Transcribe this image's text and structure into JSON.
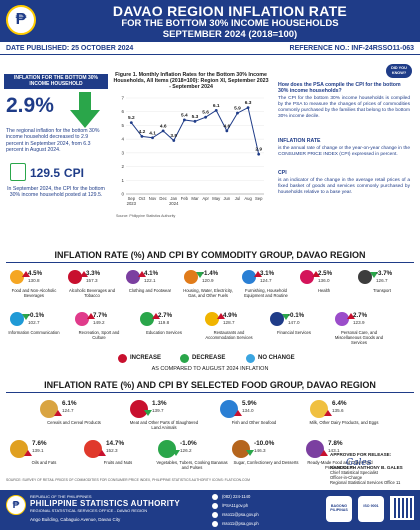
{
  "header": {
    "logo_text": "₱",
    "title": "DAVAO REGION INFLATION RATE",
    "subtitle1": "FOR THE BOTTOM 30% INCOME HOUSEHOLDS",
    "subtitle2": "SEPTEMBER 2024 (2018=100)"
  },
  "meta": {
    "date_published": "DATE PUBLISHED: 25 OCTOBER 2024",
    "reference": "REFERENCE NO.: INF-24RSSO11-063"
  },
  "summary": {
    "panel_title": "INFLATION FOR THE BOTTOM 30% INCOME HOUSEHOLD",
    "rate": "2.9%",
    "rate_text": "The regional inflation for the bottom 30% income household decreased to 2.9 percent in September 2024, from 6.3 percent in August 2024.",
    "cpi_value": "129.5",
    "cpi_label": "CPI",
    "cpi_text": "In September 2024, the CPI for the bottom 30% income household posted at 129.5."
  },
  "chart_data": {
    "type": "line",
    "title": "Figure 1. Monthly Inflation Rates for the Bottom 30% Income Households, All Items (2018=100): Region XI, September 2023 - September 2024",
    "categories": [
      "Sep 2023",
      "Oct",
      "Nov",
      "Dec",
      "Jan 2024",
      "Feb",
      "Mar",
      "Apr",
      "May",
      "Jun",
      "Jul",
      "Aug",
      "Sep"
    ],
    "x_tick_labels": [
      "Sep\n2023",
      "Oct",
      "Nov",
      "Dec",
      "Jan\n2024",
      "Feb",
      "Mar",
      "Apr",
      "May",
      "Jun",
      "Jul",
      "Aug",
      "Sep"
    ],
    "values": [
      5.2,
      4.2,
      4.1,
      4.6,
      3.9,
      5.4,
      5.3,
      5.6,
      6.1,
      4.6,
      5.9,
      6.3,
      2.9
    ],
    "ylim": [
      0,
      7
    ],
    "yticks": [
      0,
      1,
      2,
      3,
      4,
      5,
      6,
      7
    ],
    "source": "Source: Philippine Statistics Authority",
    "line_color": "#1f3c88"
  },
  "info": {
    "badge": "DID YOU KNOW?",
    "question": "How does the PSA compile the CPI for the bottom 30% income households?",
    "answer": "The CPI for the bottom 30% income households is compiled by the PSA to measure the changes of prices of commodities commonly purchased by the families that belong to the bottom 30% income decile.",
    "inf_heading": "INFLATION RATE",
    "inf_text": "is the annual rate of change or the year-on-year change in the CONSUMER PRICE INDEX (CPI) expressed in percent.",
    "cpi_heading": "CPI",
    "cpi_text": "is an indicator of the change in the average retail prices of a fixed basket of goods and services commonly purchased by households relative to a base year."
  },
  "commodity": {
    "title": "INFLATION RATE (%) AND CPI BY COMMODITY GROUP, DAVAO REGION",
    "items": [
      {
        "rate": "4.5%",
        "cpi": "130.8",
        "name": "Food and Non-Alcoholic Beverages",
        "dir": "up",
        "color": "#f5a623"
      },
      {
        "rate": "3.3%",
        "cpi": "157.3",
        "name": "Alcoholic Beverages and Tobacco",
        "dir": "up",
        "color": "#c8102e"
      },
      {
        "rate": "4.1%",
        "cpi": "122.1",
        "name": "Clothing and Footwear",
        "dir": "up",
        "color": "#7b3fa0"
      },
      {
        "rate": "-1.4%",
        "cpi": "120.9",
        "name": "Housing, Water, Electricity, Gas, and Other Fuels",
        "dir": "dn",
        "color": "#e07b1a"
      },
      {
        "rate": "3.1%",
        "cpi": "124.7",
        "name": "Furnishing, Household Equipment and Routine",
        "dir": "up",
        "color": "#2a7fd4"
      },
      {
        "rate": "2.5%",
        "cpi": "136.0",
        "name": "Health",
        "dir": "up",
        "color": "#d4145a"
      },
      {
        "rate": "-3.7%",
        "cpi": "126.7",
        "name": "Transport",
        "dir": "dn",
        "color": "#3d3d3d"
      },
      {
        "rate": "-0.1%",
        "cpi": "102.7",
        "name": "Information Communication",
        "dir": "dn",
        "color": "#1f9ad6"
      },
      {
        "rate": "7.7%",
        "cpi": "149.2",
        "name": "Recreation, Sport and Culture",
        "dir": "up",
        "color": "#e03b8b"
      },
      {
        "rate": "2.7%",
        "cpi": "119.8",
        "name": "Education Services",
        "dir": "up",
        "color": "#2aa64a"
      },
      {
        "rate": "4.9%",
        "cpi": "128.7",
        "name": "Restaurants and Accommodation Services",
        "dir": "up",
        "color": "#f0b400"
      },
      {
        "rate": "-0.1%",
        "cpi": "147.0",
        "name": "Financial Services",
        "dir": "dn",
        "color": "#1f3c88"
      },
      {
        "rate": "2.7%",
        "cpi": "123.9",
        "name": "Personal Care, and Miscellaneous Goods and Services",
        "dir": "up",
        "color": "#9b4dca"
      }
    ]
  },
  "legend": {
    "increase": "INCREASE",
    "decrease": "DECREASE",
    "no_change": "NO CHANGE",
    "compared": "AS COMPARED TO AUGUST 2024 INFLATION",
    "colors": {
      "increase": "#c8102e",
      "decrease": "#2aa64a",
      "no_change": "#3ba5e0"
    }
  },
  "food": {
    "title": "INFLATION RATE (%) AND CPI BY SELECTED FOOD GROUP, DAVAO REGION",
    "items": [
      {
        "rate": "6.1%",
        "cpi": "124.7",
        "name": "Cereals and Cereal Products",
        "dir": "up",
        "color": "#d9a441"
      },
      {
        "rate": "1.3%",
        "cpi": "139.7",
        "name": "Meat and Other Parts of Slaughtered Land Animals",
        "dir": "dn",
        "color": "#c8102e"
      },
      {
        "rate": "5.9%",
        "cpi": "134.0",
        "name": "Fish and Other Seafood",
        "dir": "up",
        "color": "#2a7fd4"
      },
      {
        "rate": "6.4%",
        "cpi": "135.6",
        "name": "Milk, Other Dairy Products, and Eggs",
        "dir": "up",
        "color": "#f0c040"
      },
      {
        "rate": "7.6%",
        "cpi": "139.1",
        "name": "Oils and Fats",
        "dir": "up",
        "color": "#e0a020"
      },
      {
        "rate": "14.7%",
        "cpi": "152.3",
        "name": "Fruits and Nuts",
        "dir": "up",
        "color": "#e0392b"
      },
      {
        "rate": "-1.0%",
        "cpi": "126.2",
        "name": "Vegetables, Tubers, Cooking Bananas and Pulses",
        "dir": "dn",
        "color": "#2aa64a"
      },
      {
        "rate": "-10.0%",
        "cpi": "146.3",
        "name": "Sugar, Confectionery and Desserts",
        "dir": "dn",
        "color": "#b5651d"
      },
      {
        "rate": "7.8%",
        "cpi": "143.1",
        "name": "Ready-Made Food and Other Food Products N.E.C.",
        "dir": "up",
        "color": "#7b3fa0"
      }
    ]
  },
  "source_note": "SOURCE: SURVEY OF RETAIL PRICES OF COMMODITIES FOR CONSUMER PRICE INDEX, PHILIPPINE STATISTICS AUTHORITY ICONS: FLATICON.COM",
  "approval": {
    "label": "APPROVED FOR RELEASE:",
    "name": "RANDOLPH ANTHONY B. GALES",
    "position1": "Chief Statistical Specialist",
    "position2": "Officer-in-Charge",
    "position3": "Regional Statistical Services Office 11"
  },
  "footer": {
    "republic": "REPUBLIC OF THE PHILIPPINES",
    "psa": "PHILIPPINE STATISTICS AUTHORITY",
    "office": "REGIONAL STATISTICAL SERVICES OFFICE - DAVAO REGION",
    "address": "Ango Building, Cabaguio Avenue, Davao City",
    "phone": "(082) 224-1140",
    "facebook": "/PSA11gov.ph",
    "email1": "rsso11@psa.gov.ph",
    "email2": "rsso11@psa.gov.ph",
    "badge1": "BAGONG PILIPINAS",
    "badge2": "ISO 9001"
  }
}
